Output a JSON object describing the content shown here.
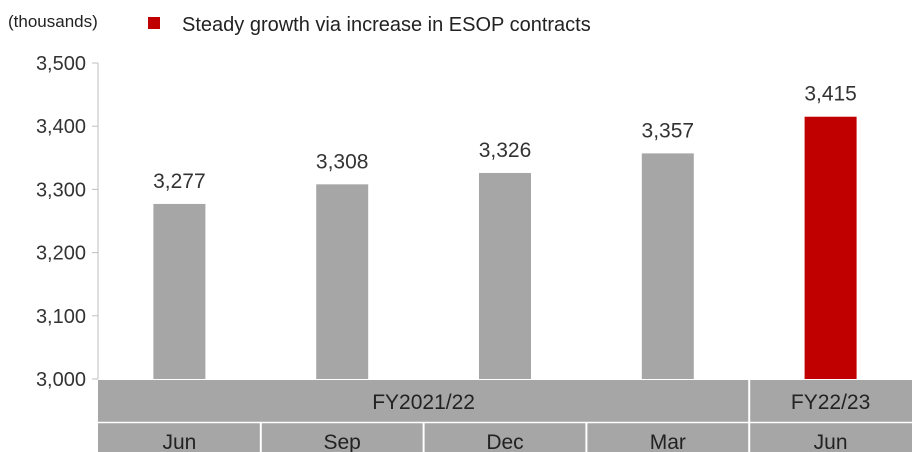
{
  "unit_label": "(thousands)",
  "legend": {
    "text": "Steady growth via increase in ESOP contracts",
    "color": "#c00000"
  },
  "fiscal_years": [
    {
      "label": "FY2021/22",
      "span": 4
    },
    {
      "label": "FY22/23",
      "span": 1
    }
  ],
  "colors": {
    "bar_default": "#a6a6a6",
    "bar_highlight": "#c00000",
    "axis_band": "#a6a6a6",
    "axis_line": "#bfbfbf"
  },
  "chart_data": {
    "type": "bar",
    "categories": [
      "Jun",
      "Sep",
      "Dec",
      "Mar",
      "Jun"
    ],
    "values": [
      3277,
      3308,
      3326,
      3357,
      3415
    ],
    "value_labels": [
      "3,277",
      "3,308",
      "3,326",
      "3,357",
      "3,415"
    ],
    "highlight_index": 4,
    "ylim": [
      3000,
      3500
    ],
    "yticks": [
      3000,
      3100,
      3200,
      3300,
      3400,
      3500
    ],
    "ytick_labels": [
      "3,000",
      "3,100",
      "3,200",
      "3,300",
      "3,400",
      "3,500"
    ],
    "grid": false,
    "legend_position": "top"
  }
}
